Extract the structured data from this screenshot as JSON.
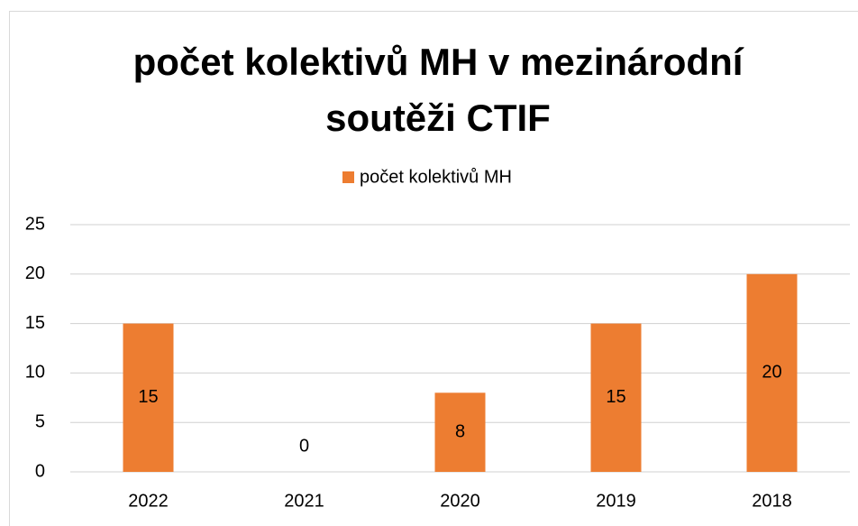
{
  "chart_data": {
    "type": "bar",
    "title": "počet kolektivů MH v mezinárodní soutěži CTIF",
    "categories": [
      "2022",
      "2021",
      "2020",
      "2019",
      "2018"
    ],
    "series": [
      {
        "name": "počet kolektivů MH",
        "color": "#ed7d31",
        "values": [
          15,
          0,
          8,
          15,
          20
        ]
      }
    ],
    "ylim": [
      0,
      25
    ],
    "yticks": [
      0,
      5,
      10,
      15,
      20,
      25
    ],
    "grid": true,
    "legend": "top"
  }
}
